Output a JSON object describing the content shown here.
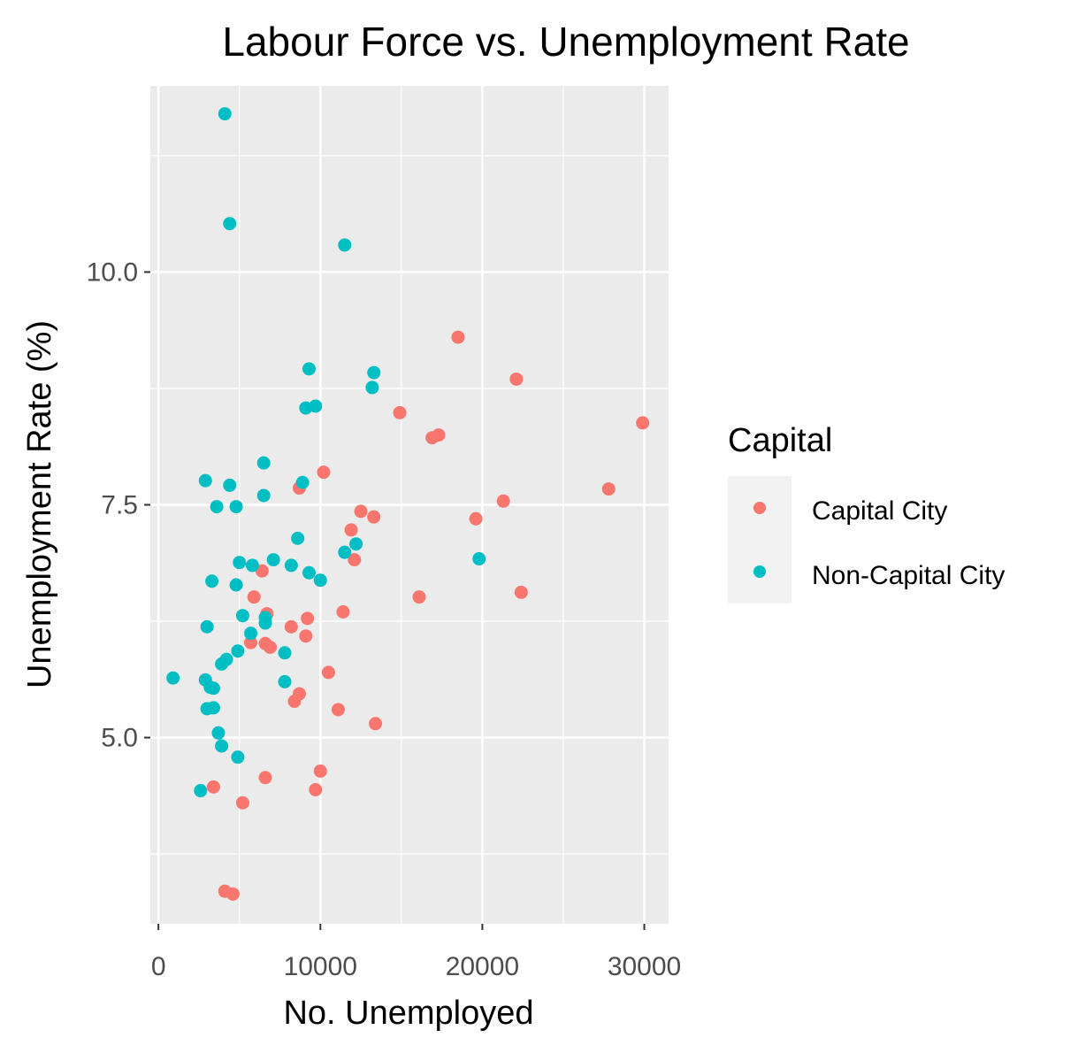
{
  "chart_data": {
    "type": "scatter",
    "title": "Labour Force vs. Unemployment Rate",
    "xlabel": "No. Unemployed",
    "ylabel": "Unemployment Rate (%)",
    "xlim": [
      -500,
      31500
    ],
    "ylim": [
      3.0,
      12.0
    ],
    "x_ticks": [
      0,
      10000,
      20000,
      30000
    ],
    "x_tick_labels": [
      "0",
      "10000",
      "20000",
      "30000"
    ],
    "y_ticks": [
      5.0,
      7.5,
      10.0
    ],
    "y_tick_labels": [
      "5.0",
      "7.5",
      "10.0"
    ],
    "grid": true,
    "legend": {
      "title": "Capital",
      "placement": "right"
    },
    "series": [
      {
        "name": "Capital City",
        "color": "#F8766D",
        "points": [
          [
            18500,
            9.3
          ],
          [
            22100,
            8.85
          ],
          [
            29900,
            8.38
          ],
          [
            14900,
            8.49
          ],
          [
            16900,
            8.22
          ],
          [
            17300,
            8.25
          ],
          [
            10200,
            7.85
          ],
          [
            8700,
            7.68
          ],
          [
            27800,
            7.67
          ],
          [
            21300,
            7.54
          ],
          [
            12500,
            7.43
          ],
          [
            13300,
            7.37
          ],
          [
            19600,
            7.35
          ],
          [
            11900,
            7.23
          ],
          [
            12100,
            6.91
          ],
          [
            6400,
            6.79
          ],
          [
            16100,
            6.51
          ],
          [
            22400,
            6.56
          ],
          [
            5900,
            6.51
          ],
          [
            6700,
            6.33
          ],
          [
            11400,
            6.35
          ],
          [
            9200,
            6.28
          ],
          [
            8200,
            6.19
          ],
          [
            9100,
            6.09
          ],
          [
            5700,
            6.02
          ],
          [
            6600,
            6.01
          ],
          [
            6900,
            5.97
          ],
          [
            10500,
            5.7
          ],
          [
            8700,
            5.47
          ],
          [
            8400,
            5.39
          ],
          [
            11100,
            5.3
          ],
          [
            13400,
            5.15
          ],
          [
            10000,
            4.64
          ],
          [
            6600,
            4.57
          ],
          [
            3400,
            4.47
          ],
          [
            9700,
            4.44
          ],
          [
            5200,
            4.3
          ],
          [
            4100,
            3.35
          ],
          [
            4600,
            3.32
          ]
        ]
      },
      {
        "name": "Non-Capital City",
        "color": "#00BFC4",
        "points": [
          [
            4100,
            11.7
          ],
          [
            4400,
            10.52
          ],
          [
            11500,
            10.29
          ],
          [
            9300,
            8.96
          ],
          [
            13300,
            8.92
          ],
          [
            13200,
            8.76
          ],
          [
            9100,
            8.54
          ],
          [
            9700,
            8.56
          ],
          [
            6500,
            7.95
          ],
          [
            2900,
            7.76
          ],
          [
            4400,
            7.71
          ],
          [
            8900,
            7.74
          ],
          [
            6500,
            7.6
          ],
          [
            3600,
            7.48
          ],
          [
            4800,
            7.48
          ],
          [
            8600,
            7.14
          ],
          [
            12200,
            7.08
          ],
          [
            11500,
            6.99
          ],
          [
            7100,
            6.91
          ],
          [
            19800,
            6.92
          ],
          [
            5000,
            6.88
          ],
          [
            5800,
            6.85
          ],
          [
            8200,
            6.85
          ],
          [
            9300,
            6.77
          ],
          [
            10000,
            6.69
          ],
          [
            3300,
            6.68
          ],
          [
            4800,
            6.64
          ],
          [
            5200,
            6.31
          ],
          [
            6600,
            6.29
          ],
          [
            6600,
            6.23
          ],
          [
            3000,
            6.19
          ],
          [
            5700,
            6.12
          ],
          [
            4900,
            5.93
          ],
          [
            4200,
            5.84
          ],
          [
            3900,
            5.79
          ],
          [
            7800,
            5.91
          ],
          [
            900,
            5.64
          ],
          [
            2900,
            5.62
          ],
          [
            7800,
            5.6
          ],
          [
            3200,
            5.54
          ],
          [
            3400,
            5.53
          ],
          [
            3000,
            5.31
          ],
          [
            3400,
            5.32
          ],
          [
            3700,
            5.05
          ],
          [
            3900,
            4.91
          ],
          [
            4900,
            4.79
          ],
          [
            2600,
            4.43
          ]
        ]
      }
    ]
  }
}
